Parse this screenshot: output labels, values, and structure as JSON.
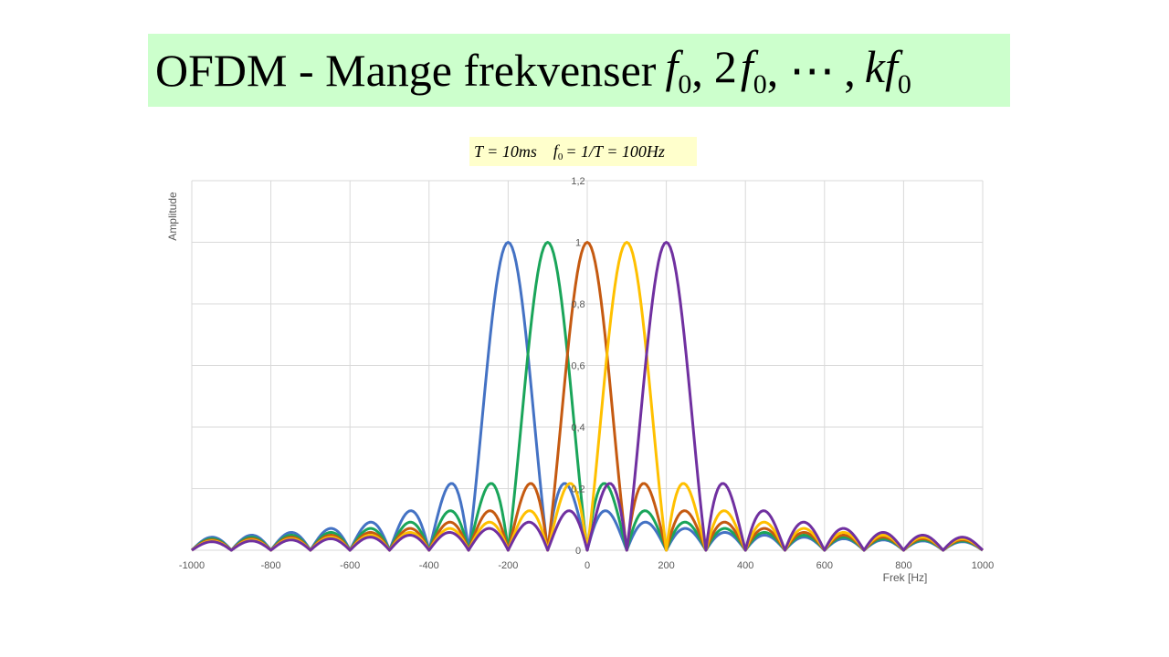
{
  "title": {
    "text": "OFDM - Mange frekvenser",
    "f": "f",
    "zero": "0",
    "two": "2",
    "comma": ",",
    "dots": "⋯",
    "k": "k"
  },
  "formula": {
    "T_eq": "T = 10ms",
    "f0_sym": "f",
    "f0_sub": "0",
    "f0_rhs": "= 1/T = 100Hz"
  },
  "chart_data": {
    "type": "line",
    "title": "",
    "xlabel": "Frek [Hz]",
    "ylabel": "Amplitude",
    "xlim": [
      -1000,
      1000
    ],
    "ylim": [
      0,
      1.2
    ],
    "x_ticks": [
      "-1000",
      "-800",
      "-600",
      "-400",
      "-200",
      "0",
      "200",
      "400",
      "600",
      "800",
      "1000"
    ],
    "y_ticks": [
      "0",
      "0,2",
      "0,4",
      "0,6",
      "0,8",
      "1",
      "1,2"
    ],
    "grid": true,
    "legend": "none",
    "x_step": 5,
    "series": [
      {
        "center": -200,
        "color": "#4472c4"
      },
      {
        "center": -100,
        "color": "#1aa55a"
      },
      {
        "center": 0,
        "color": "#c55a11"
      },
      {
        "center": 100,
        "color": "#ffc000"
      },
      {
        "center": 200,
        "color": "#7030a0"
      }
    ],
    "function": "|sin(pi*(f-center)/100) / (pi*(f-center)/100)|"
  }
}
